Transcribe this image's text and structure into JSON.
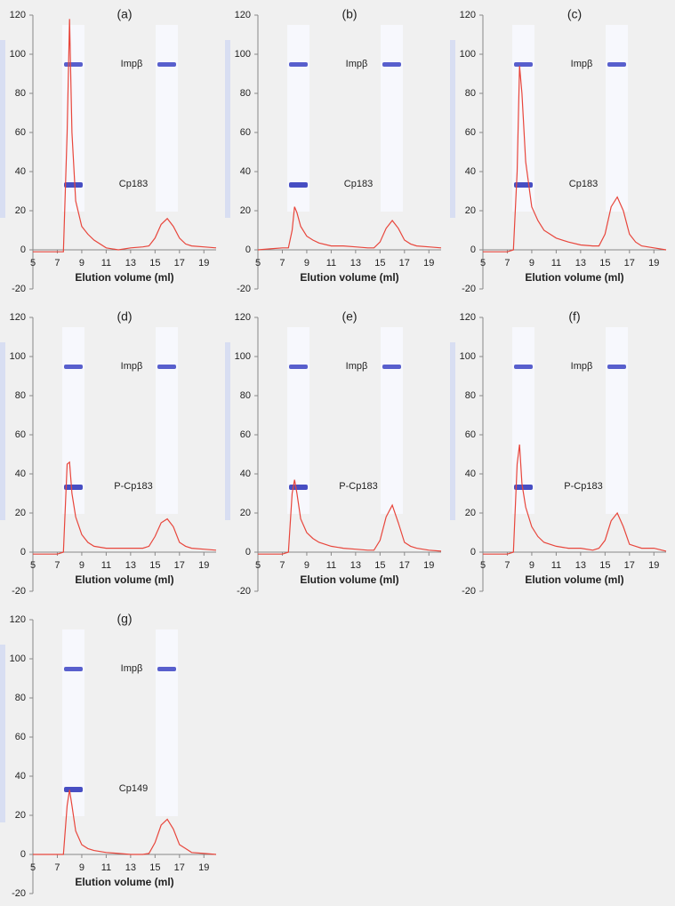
{
  "chart_data": [
    {
      "type": "line",
      "title": "(a)",
      "xlabel": "Elution volume (ml)",
      "xlim": [
        5,
        20
      ],
      "xticks": [
        5,
        7,
        9,
        11,
        13,
        15,
        17,
        19
      ],
      "ylim": [
        -20,
        120
      ],
      "yticks": [
        -20,
        0,
        20,
        40,
        60,
        80,
        100,
        120
      ],
      "annotations": [
        "Impβ",
        "Cp183"
      ],
      "x": [
        5,
        6,
        7,
        7.5,
        7.8,
        8,
        8.2,
        8.5,
        9,
        9.5,
        10,
        11,
        12,
        13,
        14,
        14.5,
        15,
        15.5,
        16,
        16.5,
        17,
        17.5,
        18,
        19,
        20
      ],
      "series": [
        {
          "color": "#e8463c",
          "values": [
            -1,
            -1,
            -1,
            -1,
            60,
            118,
            60,
            25,
            12,
            8,
            5,
            1,
            0,
            1,
            1.5,
            2,
            6,
            13,
            16,
            12,
            6,
            3,
            2,
            1.5,
            1
          ]
        }
      ]
    },
    {
      "type": "line",
      "title": "(b)",
      "xlabel": "Elution volume (ml)",
      "xlim": [
        5,
        20
      ],
      "xticks": [
        5,
        7,
        9,
        11,
        13,
        15,
        17,
        19
      ],
      "ylim": [
        -20,
        120
      ],
      "yticks": [
        -20,
        0,
        20,
        40,
        60,
        80,
        100,
        120
      ],
      "annotations": [
        "Impβ",
        "Cp183"
      ],
      "x": [
        5,
        6,
        7,
        7.5,
        7.8,
        8,
        8.2,
        8.5,
        9,
        9.5,
        10,
        11,
        12,
        13,
        14,
        14.5,
        15,
        15.5,
        16,
        16.5,
        17,
        17.5,
        18,
        19,
        20
      ],
      "series": [
        {
          "color": "#e8463c",
          "values": [
            0,
            0.5,
            1,
            1,
            10,
            22,
            19,
            12,
            7,
            5,
            3.5,
            2,
            2,
            1.5,
            1,
            1,
            4,
            11,
            15,
            11,
            5,
            3,
            2,
            1.5,
            1
          ]
        }
      ]
    },
    {
      "type": "line",
      "title": "(c)",
      "xlabel": "Elution volume (ml)",
      "xlim": [
        5,
        20
      ],
      "xticks": [
        5,
        7,
        9,
        11,
        13,
        15,
        17,
        19
      ],
      "ylim": [
        -20,
        120
      ],
      "yticks": [
        -20,
        0,
        20,
        40,
        60,
        80,
        100,
        120
      ],
      "annotations": [
        "Impβ",
        "Cp183"
      ],
      "x": [
        5,
        6,
        7,
        7.5,
        7.8,
        8,
        8.2,
        8.5,
        9,
        9.5,
        10,
        11,
        12,
        13,
        14,
        14.5,
        15,
        15.5,
        16,
        16.5,
        17,
        17.5,
        18,
        19,
        20
      ],
      "series": [
        {
          "color": "#e8463c",
          "values": [
            -1,
            -1,
            -1,
            0,
            40,
            94,
            80,
            45,
            22,
            15,
            10,
            6,
            4,
            2.5,
            2,
            2,
            8,
            22,
            27,
            20,
            8,
            4,
            2,
            1,
            0
          ]
        }
      ]
    },
    {
      "type": "line",
      "title": "(d)",
      "xlabel": "Elution volume (ml)",
      "xlim": [
        5,
        20
      ],
      "xticks": [
        5,
        7,
        9,
        11,
        13,
        15,
        17,
        19
      ],
      "ylim": [
        -20,
        120
      ],
      "yticks": [
        -20,
        0,
        20,
        40,
        60,
        80,
        100,
        120
      ],
      "annotations": [
        "Impβ",
        "P-Cp183"
      ],
      "x": [
        5,
        6,
        7,
        7.5,
        7.8,
        8,
        8.2,
        8.5,
        9,
        9.5,
        10,
        11,
        12,
        13,
        14,
        14.5,
        15,
        15.5,
        16,
        16.5,
        17,
        17.5,
        18,
        19,
        20
      ],
      "series": [
        {
          "color": "#e8463c",
          "values": [
            -1,
            -1,
            -1,
            0,
            45,
            46,
            30,
            18,
            9,
            5,
            3,
            2,
            2,
            2,
            2,
            3,
            8,
            15,
            17,
            13,
            5,
            3,
            2,
            1.5,
            1
          ]
        }
      ]
    },
    {
      "type": "line",
      "title": "(e)",
      "xlabel": "Elution volume (ml)",
      "xlim": [
        5,
        20
      ],
      "xticks": [
        5,
        7,
        9,
        11,
        13,
        15,
        17,
        19
      ],
      "ylim": [
        -20,
        120
      ],
      "yticks": [
        -20,
        0,
        20,
        40,
        60,
        80,
        100,
        120
      ],
      "annotations": [
        "Impβ",
        "P-Cp183"
      ],
      "x": [
        5,
        6,
        7,
        7.5,
        7.8,
        8,
        8.2,
        8.5,
        9,
        9.5,
        10,
        11,
        12,
        13,
        14,
        14.5,
        15,
        15.5,
        16,
        16.5,
        17,
        17.5,
        18,
        19,
        20
      ],
      "series": [
        {
          "color": "#e8463c",
          "values": [
            -1,
            -1,
            -1,
            0,
            30,
            37,
            30,
            17,
            10,
            7,
            5,
            3,
            2,
            1.5,
            1,
            1,
            6,
            18,
            24,
            15,
            5,
            3,
            2,
            1,
            0.5
          ]
        }
      ]
    },
    {
      "type": "line",
      "title": "(f)",
      "xlabel": "Elution volume (ml)",
      "xlim": [
        5,
        20
      ],
      "xticks": [
        5,
        7,
        9,
        11,
        13,
        15,
        17,
        19
      ],
      "ylim": [
        -20,
        120
      ],
      "yticks": [
        -20,
        0,
        20,
        40,
        60,
        80,
        100,
        120
      ],
      "annotations": [
        "Impβ",
        "P-Cp183"
      ],
      "x": [
        5,
        6,
        7,
        7.5,
        7.8,
        8,
        8.2,
        8.5,
        9,
        9.5,
        10,
        11,
        12,
        13,
        14,
        14.5,
        15,
        15.5,
        16,
        16.5,
        17,
        17.5,
        18,
        19,
        20
      ],
      "series": [
        {
          "color": "#e8463c",
          "values": [
            -1,
            -1,
            -1,
            0,
            45,
            55,
            35,
            23,
            13,
            8,
            5,
            3,
            2,
            2,
            1,
            2,
            6,
            16,
            20,
            13,
            4,
            3,
            2,
            2,
            0.5
          ]
        }
      ]
    },
    {
      "type": "line",
      "title": "(g)",
      "xlabel": "Elution volume (ml)",
      "xlim": [
        5,
        20
      ],
      "xticks": [
        5,
        7,
        9,
        11,
        13,
        15,
        17,
        19
      ],
      "ylim": [
        -20,
        120
      ],
      "yticks": [
        -20,
        0,
        20,
        40,
        60,
        80,
        100,
        120
      ],
      "annotations": [
        "Impβ",
        "Cp149"
      ],
      "x": [
        5,
        6,
        7,
        7.5,
        7.8,
        8,
        8.2,
        8.5,
        9,
        9.5,
        10,
        11,
        12,
        13,
        14,
        14.5,
        15,
        15.5,
        16,
        16.5,
        17,
        17.5,
        18,
        19,
        20
      ],
      "series": [
        {
          "color": "#e8463c",
          "values": [
            0,
            0,
            0,
            0,
            25,
            33,
            25,
            12,
            5,
            3,
            2,
            1,
            0.5,
            0,
            0,
            0.5,
            6,
            15,
            18,
            13,
            5,
            3,
            1,
            0.5,
            0
          ]
        }
      ]
    }
  ]
}
